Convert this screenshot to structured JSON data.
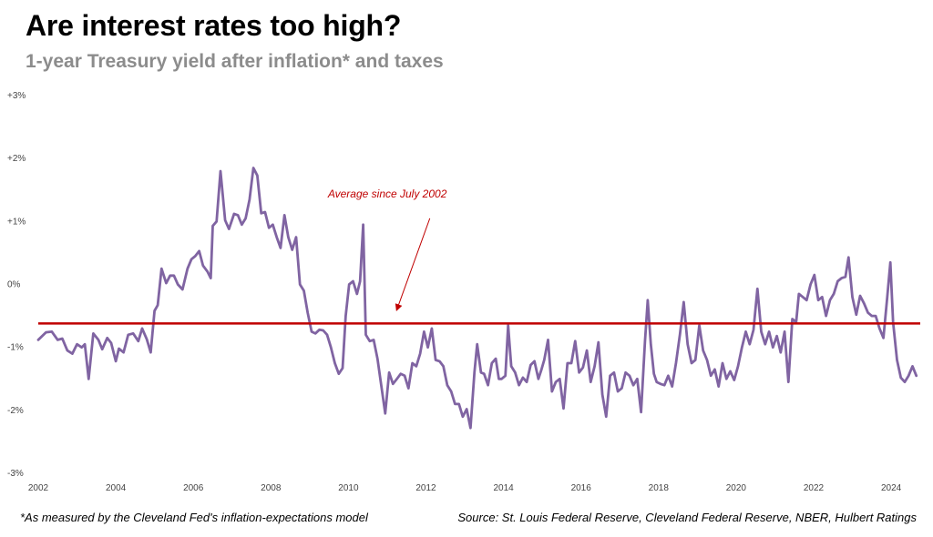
{
  "title": "Are interest rates too high?",
  "subtitle": "1-year Treasury yield after inflation* and taxes",
  "footnote": "*As measured by the Cleveland Fed's inflation-expectations model",
  "source": "Source: St. Louis Federal Reserve, Cleveland Federal Reserve, NBER, Hulbert Ratings",
  "chart_data": {
    "type": "line",
    "title": "Are interest rates too high?",
    "subtitle": "1-year Treasury yield after inflation* and taxes",
    "xlabel": "",
    "ylabel": "",
    "xlim": [
      2002,
      2024.75
    ],
    "ylim": [
      -3,
      3
    ],
    "grid": false,
    "x_ticks": [
      2002,
      2004,
      2006,
      2008,
      2010,
      2012,
      2014,
      2016,
      2018,
      2020,
      2022,
      2024
    ],
    "y_ticks": [
      {
        "value": 3,
        "label": "+3%"
      },
      {
        "value": 2,
        "label": "+2%"
      },
      {
        "value": 1,
        "label": "+1%"
      },
      {
        "value": 0,
        "label": "0%"
      },
      {
        "value": -1,
        "label": "-1%"
      },
      {
        "value": -2,
        "label": "-2%"
      },
      {
        "value": -3,
        "label": "-3%"
      }
    ],
    "line_color": "#8064a2",
    "average": {
      "value": -0.62,
      "label": "Average since July 2002",
      "color": "#c00000",
      "label_at": [
        2009.0,
        1.38
      ],
      "arrow_to": [
        2011.25,
        -0.4
      ]
    },
    "series": [
      {
        "points": [
          [
            2002.0,
            -0.88
          ],
          [
            2002.2,
            -0.76
          ],
          [
            2002.35,
            -0.75
          ],
          [
            2002.5,
            -0.88
          ],
          [
            2002.62,
            -0.86
          ],
          [
            2002.75,
            -1.05
          ],
          [
            2002.88,
            -1.1
          ],
          [
            2003.0,
            -0.95
          ],
          [
            2003.12,
            -1.0
          ],
          [
            2003.2,
            -0.95
          ],
          [
            2003.3,
            -1.5
          ],
          [
            2003.42,
            -0.78
          ],
          [
            2003.55,
            -0.88
          ],
          [
            2003.65,
            -1.03
          ],
          [
            2003.78,
            -0.85
          ],
          [
            2003.88,
            -0.93
          ],
          [
            2004.0,
            -1.22
          ],
          [
            2004.08,
            -1.02
          ],
          [
            2004.2,
            -1.08
          ],
          [
            2004.32,
            -0.8
          ],
          [
            2004.45,
            -0.78
          ],
          [
            2004.58,
            -0.9
          ],
          [
            2004.68,
            -0.7
          ],
          [
            2004.8,
            -0.87
          ],
          [
            2004.9,
            -1.08
          ],
          [
            2005.0,
            -0.42
          ],
          [
            2005.08,
            -0.33
          ],
          [
            2005.18,
            0.25
          ],
          [
            2005.3,
            0.02
          ],
          [
            2005.4,
            0.14
          ],
          [
            2005.5,
            0.14
          ],
          [
            2005.6,
            0.0
          ],
          [
            2005.72,
            -0.08
          ],
          [
            2005.85,
            0.25
          ],
          [
            2005.95,
            0.4
          ],
          [
            2006.05,
            0.45
          ],
          [
            2006.15,
            0.53
          ],
          [
            2006.25,
            0.3
          ],
          [
            2006.37,
            0.2
          ],
          [
            2006.45,
            0.1
          ],
          [
            2006.5,
            0.93
          ],
          [
            2006.6,
            1.0
          ],
          [
            2006.7,
            1.8
          ],
          [
            2006.82,
            1.02
          ],
          [
            2006.92,
            0.88
          ],
          [
            2007.05,
            1.12
          ],
          [
            2007.15,
            1.1
          ],
          [
            2007.25,
            0.95
          ],
          [
            2007.35,
            1.05
          ],
          [
            2007.45,
            1.35
          ],
          [
            2007.55,
            1.85
          ],
          [
            2007.65,
            1.73
          ],
          [
            2007.75,
            1.13
          ],
          [
            2007.85,
            1.15
          ],
          [
            2007.95,
            0.9
          ],
          [
            2008.05,
            0.95
          ],
          [
            2008.15,
            0.75
          ],
          [
            2008.25,
            0.58
          ],
          [
            2008.35,
            1.1
          ],
          [
            2008.45,
            0.75
          ],
          [
            2008.55,
            0.55
          ],
          [
            2008.65,
            0.75
          ],
          [
            2008.75,
            0.0
          ],
          [
            2008.85,
            -0.1
          ],
          [
            2008.95,
            -0.45
          ],
          [
            2009.05,
            -0.75
          ],
          [
            2009.15,
            -0.78
          ],
          [
            2009.25,
            -0.72
          ],
          [
            2009.35,
            -0.73
          ],
          [
            2009.45,
            -0.8
          ],
          [
            2009.55,
            -1.0
          ],
          [
            2009.65,
            -1.25
          ],
          [
            2009.75,
            -1.42
          ],
          [
            2009.85,
            -1.33
          ],
          [
            2009.93,
            -0.5
          ],
          [
            2010.02,
            0.0
          ],
          [
            2010.12,
            0.05
          ],
          [
            2010.22,
            -0.15
          ],
          [
            2010.3,
            0.05
          ],
          [
            2010.38,
            0.95
          ],
          [
            2010.45,
            -0.8
          ],
          [
            2010.55,
            -0.9
          ],
          [
            2010.65,
            -0.88
          ],
          [
            2010.75,
            -1.18
          ],
          [
            2010.85,
            -1.62
          ],
          [
            2010.95,
            -2.05
          ],
          [
            2011.05,
            -1.4
          ],
          [
            2011.15,
            -1.58
          ],
          [
            2011.25,
            -1.5
          ],
          [
            2011.35,
            -1.42
          ],
          [
            2011.45,
            -1.45
          ],
          [
            2011.55,
            -1.65
          ],
          [
            2011.65,
            -1.25
          ],
          [
            2011.75,
            -1.3
          ],
          [
            2011.85,
            -1.1
          ],
          [
            2011.95,
            -0.75
          ],
          [
            2012.05,
            -1.0
          ],
          [
            2012.15,
            -0.7
          ],
          [
            2012.25,
            -1.2
          ],
          [
            2012.35,
            -1.22
          ],
          [
            2012.45,
            -1.3
          ],
          [
            2012.55,
            -1.6
          ],
          [
            2012.65,
            -1.7
          ],
          [
            2012.75,
            -1.9
          ],
          [
            2012.85,
            -1.9
          ],
          [
            2012.95,
            -2.1
          ],
          [
            2013.05,
            -1.98
          ],
          [
            2013.15,
            -2.28
          ],
          [
            2013.25,
            -1.4
          ],
          [
            2013.32,
            -0.95
          ],
          [
            2013.42,
            -1.4
          ],
          [
            2013.5,
            -1.42
          ],
          [
            2013.6,
            -1.6
          ],
          [
            2013.7,
            -1.25
          ],
          [
            2013.8,
            -1.18
          ],
          [
            2013.88,
            -1.5
          ],
          [
            2013.95,
            -1.5
          ],
          [
            2014.05,
            -1.45
          ],
          [
            2014.12,
            -0.65
          ],
          [
            2014.2,
            -1.3
          ],
          [
            2014.3,
            -1.4
          ],
          [
            2014.4,
            -1.6
          ],
          [
            2014.5,
            -1.48
          ],
          [
            2014.6,
            -1.55
          ],
          [
            2014.7,
            -1.28
          ],
          [
            2014.8,
            -1.22
          ],
          [
            2014.9,
            -1.5
          ],
          [
            2014.98,
            -1.35
          ],
          [
            2015.05,
            -1.2
          ],
          [
            2015.15,
            -0.88
          ],
          [
            2015.25,
            -1.7
          ],
          [
            2015.35,
            -1.55
          ],
          [
            2015.45,
            -1.5
          ],
          [
            2015.55,
            -1.97
          ],
          [
            2015.65,
            -1.25
          ],
          [
            2015.75,
            -1.25
          ],
          [
            2015.85,
            -0.9
          ],
          [
            2015.95,
            -1.4
          ],
          [
            2016.05,
            -1.32
          ],
          [
            2016.15,
            -1.05
          ],
          [
            2016.25,
            -1.55
          ],
          [
            2016.35,
            -1.3
          ],
          [
            2016.45,
            -0.92
          ],
          [
            2016.55,
            -1.75
          ],
          [
            2016.65,
            -2.1
          ],
          [
            2016.75,
            -1.45
          ],
          [
            2016.85,
            -1.4
          ],
          [
            2016.95,
            -1.7
          ],
          [
            2017.05,
            -1.65
          ],
          [
            2017.15,
            -1.4
          ],
          [
            2017.25,
            -1.45
          ],
          [
            2017.35,
            -1.6
          ],
          [
            2017.45,
            -1.5
          ],
          [
            2017.55,
            -2.03
          ],
          [
            2017.65,
            -0.9
          ],
          [
            2017.72,
            -0.25
          ],
          [
            2017.8,
            -0.95
          ],
          [
            2017.88,
            -1.42
          ],
          [
            2017.95,
            -1.55
          ],
          [
            2018.05,
            -1.58
          ],
          [
            2018.15,
            -1.6
          ],
          [
            2018.25,
            -1.45
          ],
          [
            2018.35,
            -1.62
          ],
          [
            2018.45,
            -1.25
          ],
          [
            2018.55,
            -0.8
          ],
          [
            2018.65,
            -0.28
          ],
          [
            2018.75,
            -0.95
          ],
          [
            2018.85,
            -1.25
          ],
          [
            2018.95,
            -1.2
          ],
          [
            2019.05,
            -0.65
          ],
          [
            2019.15,
            -1.05
          ],
          [
            2019.25,
            -1.2
          ],
          [
            2019.35,
            -1.45
          ],
          [
            2019.45,
            -1.35
          ],
          [
            2019.55,
            -1.62
          ],
          [
            2019.65,
            -1.25
          ],
          [
            2019.75,
            -1.5
          ],
          [
            2019.85,
            -1.38
          ],
          [
            2019.95,
            -1.52
          ],
          [
            2020.05,
            -1.3
          ],
          [
            2020.15,
            -1.0
          ],
          [
            2020.25,
            -0.75
          ],
          [
            2020.35,
            -0.95
          ],
          [
            2020.45,
            -0.72
          ],
          [
            2020.55,
            -0.07
          ],
          [
            2020.65,
            -0.75
          ],
          [
            2020.75,
            -0.95
          ],
          [
            2020.85,
            -0.75
          ],
          [
            2020.95,
            -1.0
          ],
          [
            2021.05,
            -0.82
          ],
          [
            2021.15,
            -1.08
          ],
          [
            2021.25,
            -0.75
          ],
          [
            2021.35,
            -1.55
          ],
          [
            2021.45,
            -0.55
          ],
          [
            2021.55,
            -0.6
          ],
          [
            2021.62,
            -0.15
          ],
          [
            2021.72,
            -0.2
          ],
          [
            2021.82,
            -0.25
          ],
          [
            2021.92,
            -0.0
          ],
          [
            2022.02,
            0.15
          ],
          [
            2022.12,
            -0.25
          ],
          [
            2022.22,
            -0.2
          ],
          [
            2022.32,
            -0.5
          ],
          [
            2022.42,
            -0.25
          ],
          [
            2022.52,
            -0.15
          ],
          [
            2022.62,
            0.05
          ],
          [
            2022.72,
            0.1
          ],
          [
            2022.82,
            0.12
          ],
          [
            2022.9,
            0.43
          ],
          [
            2023.0,
            -0.2
          ],
          [
            2023.1,
            -0.48
          ],
          [
            2023.2,
            -0.18
          ],
          [
            2023.3,
            -0.3
          ],
          [
            2023.4,
            -0.45
          ],
          [
            2023.5,
            -0.5
          ],
          [
            2023.6,
            -0.5
          ],
          [
            2023.7,
            -0.7
          ],
          [
            2023.8,
            -0.85
          ],
          [
            2023.9,
            -0.2
          ],
          [
            2023.98,
            0.35
          ],
          [
            2024.05,
            -0.6
          ],
          [
            2024.15,
            -1.2
          ],
          [
            2024.25,
            -1.48
          ],
          [
            2024.35,
            -1.55
          ],
          [
            2024.45,
            -1.45
          ],
          [
            2024.55,
            -1.3
          ],
          [
            2024.65,
            -1.45
          ]
        ]
      }
    ]
  }
}
